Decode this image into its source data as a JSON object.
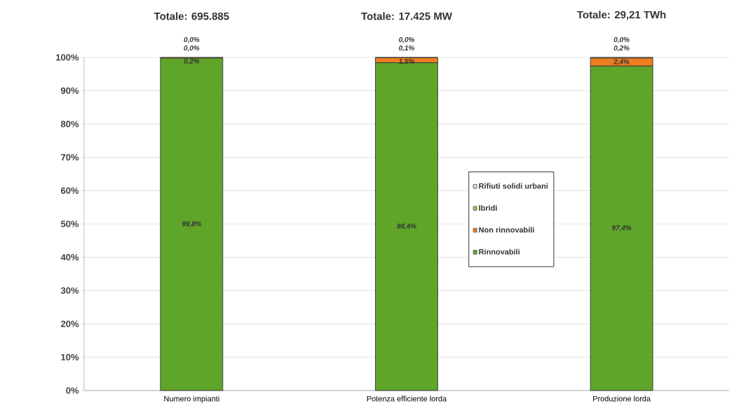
{
  "chart_data": {
    "type": "bar",
    "stacked": true,
    "categories": [
      "Numero impianti",
      "Potenza efficiente lorda",
      "Produzione lorda"
    ],
    "series": [
      {
        "name": "Rinnovabili",
        "color": "#5fa52a",
        "values": [
          99.8,
          98.4,
          97.4
        ],
        "value_labels": [
          "99,8%",
          "98,4%",
          "97,4%"
        ]
      },
      {
        "name": "Non rinnovabili",
        "color": "#ee7d22",
        "values": [
          0.2,
          1.5,
          2.4
        ],
        "value_labels": [
          "0,2%",
          "1,5%",
          "2,4%"
        ]
      },
      {
        "name": "Ibridi",
        "color": "#a7c43a",
        "values": [
          0.0,
          0.1,
          0.2
        ],
        "value_labels": [
          "0,0%",
          "0,1%",
          "0,2%"
        ]
      },
      {
        "name": "Rifiuti solidi urbani",
        "color": "#c9dbe8",
        "values": [
          0.0,
          0.0,
          0.0
        ],
        "value_labels": [
          "0,0%",
          "0,0%",
          "0,0%"
        ]
      }
    ],
    "annotations": [
      "Totale: 695.885",
      "Totale: 17.425 MW",
      "Totale: 29,21 TWh"
    ],
    "ylim": [
      0,
      100
    ],
    "yticks": [
      {
        "value": 0,
        "label": "0%"
      },
      {
        "value": 10,
        "label": "10%"
      },
      {
        "value": 20,
        "label": "20%"
      },
      {
        "value": 30,
        "label": "30%"
      },
      {
        "value": 40,
        "label": "40%"
      },
      {
        "value": 50,
        "label": "50%"
      },
      {
        "value": 60,
        "label": "60%"
      },
      {
        "value": 70,
        "label": "70%"
      },
      {
        "value": 80,
        "label": "80%"
      },
      {
        "value": 90,
        "label": "90%"
      },
      {
        "value": 100,
        "label": "100%"
      }
    ],
    "grid": "y",
    "legend": "right"
  }
}
